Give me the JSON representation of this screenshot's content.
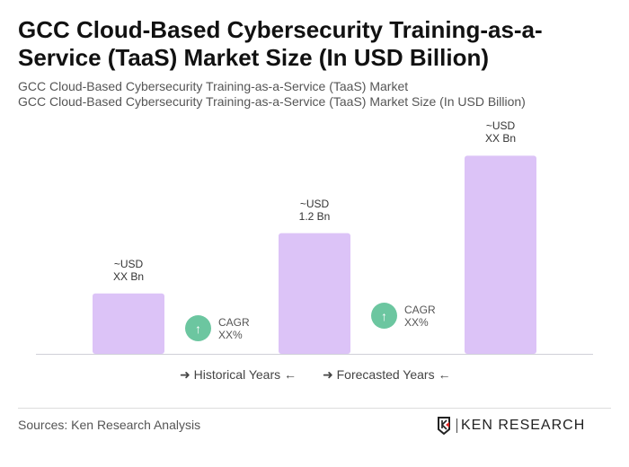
{
  "title": "GCC Cloud-Based Cybersecurity Training-as-a-Service (TaaS) Market Size (In USD Billion)",
  "subtitle1": "GCC Cloud-Based Cybersecurity Training-as-a-Service (TaaS) Market",
  "subtitle2": "GCC Cloud-Based Cybersecurity Training-as-a-Service (TaaS) Market Size (In USD Billion)",
  "chart_data": {
    "type": "bar",
    "categories": [
      "",
      "",
      ""
    ],
    "values": [
      0.6,
      1.2,
      1.97
    ],
    "data_labels": [
      [
        "~USD",
        "XX Bn"
      ],
      [
        "~USD",
        "1.2 Bn"
      ],
      [
        "~USD",
        "XX Bn"
      ]
    ],
    "ylim": [
      0,
      2.1
    ],
    "grid": false,
    "bar_color": "#dcc3f7",
    "cagr": [
      {
        "label": "CAGR",
        "value": "XX%"
      },
      {
        "label": "CAGR",
        "value": "XX%"
      }
    ],
    "cagr_color": "#6cc6a0",
    "legend": {
      "historical": "Historical Years",
      "forecasted": "Forecasted Years",
      "placement": "bottom"
    }
  },
  "sources": "Sources: Ken Research Analysis",
  "logo_text": "KEN RESEARCH"
}
